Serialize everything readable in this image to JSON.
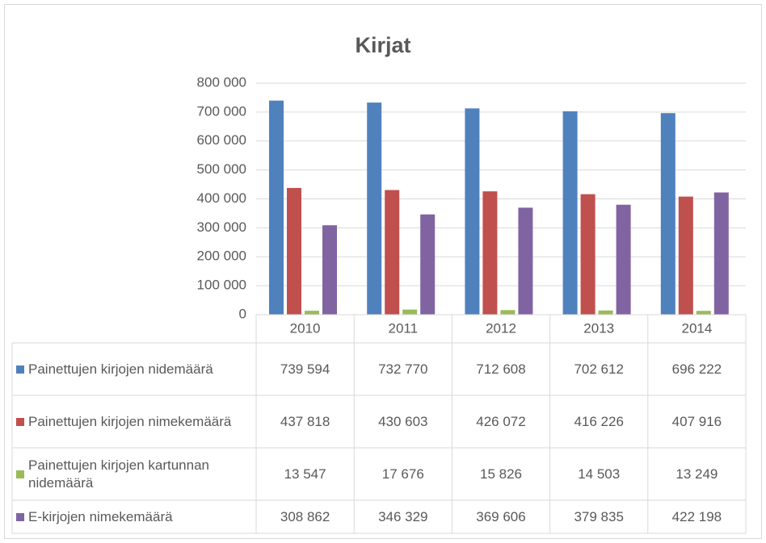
{
  "chart_data": {
    "type": "bar",
    "title": "Kirjat",
    "categories": [
      "2010",
      "2011",
      "2012",
      "2013",
      "2014"
    ],
    "series": [
      {
        "name": "Painettujen kirjojen nidemäärä",
        "color": "#4f81bd",
        "values": [
          739594,
          732770,
          712608,
          702612,
          696222
        ],
        "value_labels": [
          "739 594",
          "732 770",
          "712 608",
          "702 612",
          "696 222"
        ]
      },
      {
        "name": "Painettujen kirjojen nimekemäärä",
        "color": "#c0504d",
        "values": [
          437818,
          430603,
          426072,
          416226,
          407916
        ],
        "value_labels": [
          "437 818",
          "430 603",
          "426 072",
          "416 226",
          "407 916"
        ]
      },
      {
        "name": "Painettujen kirjojen kartunnan nidemäärä",
        "color": "#9bbb59",
        "values": [
          13547,
          17676,
          15826,
          14503,
          13249
        ],
        "value_labels": [
          "13 547",
          "17 676",
          "15 826",
          "14 503",
          "13 249"
        ]
      },
      {
        "name": "E-kirjojen nimekemäärä",
        "color": "#8064a2",
        "values": [
          308862,
          346329,
          369606,
          379835,
          422198
        ],
        "value_labels": [
          "308 862",
          "346 329",
          "369 606",
          "379 835",
          "422 198"
        ]
      }
    ],
    "ylim": [
      0,
      800000
    ],
    "yticks": [
      {
        "value": 0,
        "label": "0"
      },
      {
        "value": 100000,
        "label": "100 000"
      },
      {
        "value": 200000,
        "label": "200 000"
      },
      {
        "value": 300000,
        "label": "300 000"
      },
      {
        "value": 400000,
        "label": "400 000"
      },
      {
        "value": 500000,
        "label": "500 000"
      },
      {
        "value": 600000,
        "label": "600 000"
      },
      {
        "value": 700000,
        "label": "700 000"
      },
      {
        "value": 800000,
        "label": "800 000"
      }
    ],
    "grid": true,
    "data_table": true
  }
}
